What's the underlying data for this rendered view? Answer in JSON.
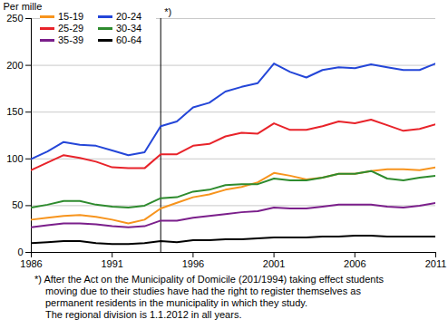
{
  "chart_data": {
    "type": "line",
    "x": [
      1986,
      1987,
      1988,
      1989,
      1990,
      1991,
      1992,
      1993,
      1994,
      1995,
      1996,
      1997,
      1998,
      1999,
      2000,
      2001,
      2002,
      2003,
      2004,
      2005,
      2006,
      2007,
      2008,
      2009,
      2010,
      2011
    ],
    "y_label": "Per mille",
    "series": [
      {
        "name": "15-19",
        "color": "#f7941d",
        "values": [
          35,
          37,
          39,
          40,
          38,
          35,
          31,
          35,
          47,
          53,
          59,
          62,
          67,
          70,
          75,
          85,
          82,
          78,
          80,
          84,
          84,
          87,
          89,
          89,
          88,
          91
        ]
      },
      {
        "name": "20-24",
        "color": "#2446d8",
        "values": [
          100,
          108,
          118,
          115,
          114,
          109,
          104,
          107,
          135,
          140,
          155,
          160,
          172,
          177,
          181,
          202,
          193,
          187,
          195,
          198,
          197,
          201,
          198,
          195,
          195,
          202
        ]
      },
      {
        "name": "25-29",
        "color": "#e8232a",
        "values": [
          88,
          96,
          104,
          101,
          97,
          91,
          90,
          90,
          105,
          105,
          114,
          116,
          124,
          128,
          127,
          138,
          131,
          131,
          135,
          140,
          138,
          142,
          136,
          130,
          132,
          137
        ]
      },
      {
        "name": "30-34",
        "color": "#2e8b2e",
        "values": [
          48,
          51,
          55,
          55,
          51,
          49,
          48,
          50,
          58,
          59,
          65,
          67,
          72,
          73,
          73,
          79,
          77,
          77,
          80,
          84,
          84,
          87,
          79,
          77,
          80,
          82
        ]
      },
      {
        "name": "35-39",
        "color": "#7b1f8b",
        "values": [
          27,
          29,
          31,
          31,
          30,
          28,
          27,
          28,
          34,
          34,
          37,
          39,
          41,
          43,
          44,
          48,
          47,
          47,
          49,
          51,
          51,
          51,
          49,
          48,
          50,
          53
        ]
      },
      {
        "name": "60-64",
        "color": "#000000",
        "values": [
          10,
          11,
          12,
          12,
          10,
          9,
          9,
          10,
          12,
          11,
          13,
          13,
          14,
          14,
          15,
          16,
          16,
          16,
          17,
          17,
          18,
          18,
          17,
          17,
          17,
          17
        ]
      }
    ],
    "xlim": [
      1986,
      2011
    ],
    "xticks": [
      1986,
      1991,
      1996,
      2001,
      2006,
      2011
    ],
    "ylim": [
      0,
      250
    ],
    "yticks": [
      0,
      50,
      100,
      150,
      200,
      250
    ],
    "grid": true,
    "legend": "top-left",
    "annotations": [
      {
        "x": 1994,
        "text": "*)"
      }
    ],
    "caption": [
      "*) After the Act on the Municipality of Domicile (201/1994) taking effect students",
      "moving due to their studies have had the right to register themselves as",
      "permanent residents in the municipality in which they study.",
      "The regional division is 1.1.2012 in all years."
    ]
  }
}
